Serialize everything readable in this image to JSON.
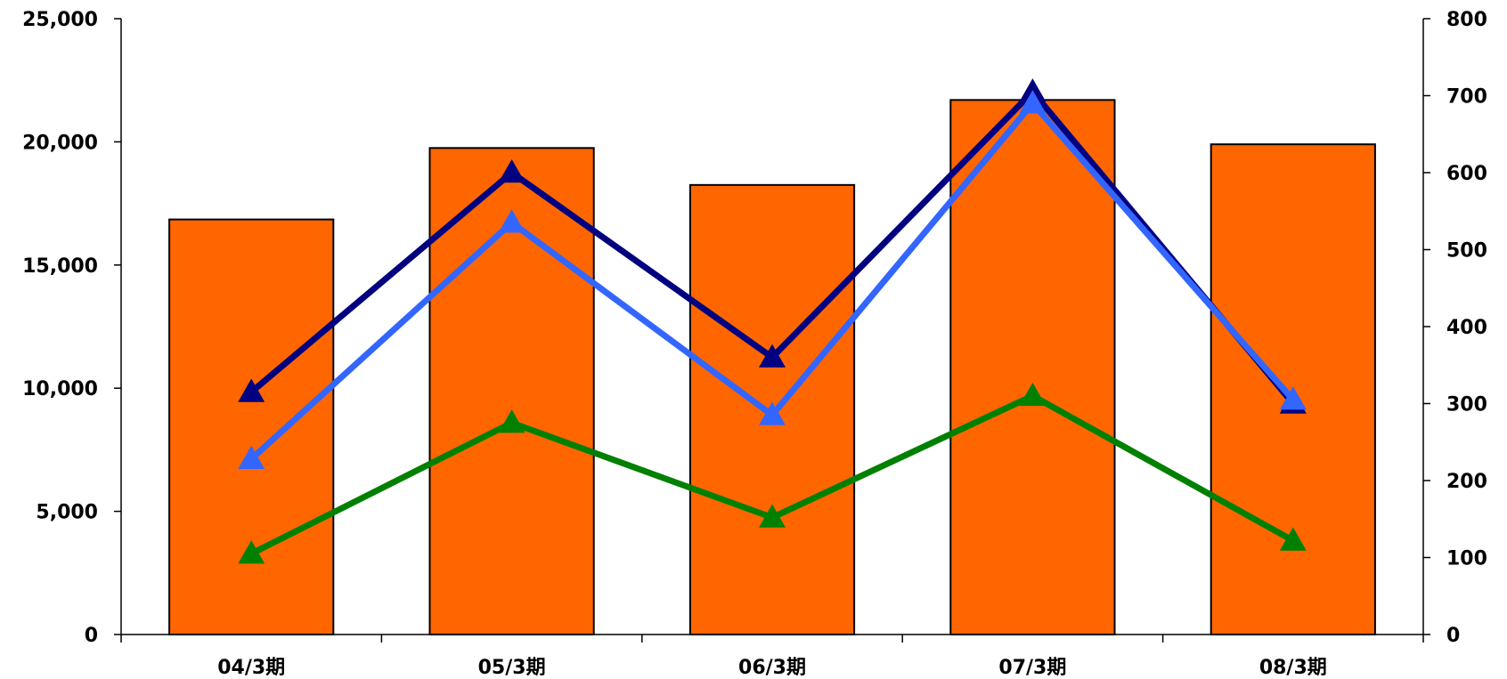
{
  "chart_data": {
    "type": "bar",
    "categories": [
      "04/3期",
      "05/3期",
      "06/3期",
      "07/3期",
      "08/3期"
    ],
    "bars": {
      "values": [
        16850,
        19750,
        18250,
        21700,
        19900
      ],
      "axis": "left",
      "color": "#FF6600"
    },
    "series": [
      {
        "type": "line",
        "axis": "right",
        "color": "#000080",
        "values": [
          315,
          600,
          360,
          705,
          300
        ]
      },
      {
        "type": "line",
        "axis": "right",
        "color": "#3366FF",
        "values": [
          228,
          535,
          285,
          690,
          305
        ]
      },
      {
        "type": "line",
        "axis": "right",
        "color": "#008000",
        "values": [
          105,
          275,
          152,
          310,
          122
        ]
      }
    ],
    "y_left": {
      "min": 0,
      "max": 25000,
      "ticks": [
        "0",
        "5,000",
        "10,000",
        "15,000",
        "20,000",
        "25,000"
      ]
    },
    "y_right": {
      "min": 0,
      "max": 800,
      "ticks": [
        "0",
        "100",
        "200",
        "300",
        "400",
        "500",
        "600",
        "700",
        "800"
      ]
    },
    "grid": false,
    "legend": "none"
  }
}
